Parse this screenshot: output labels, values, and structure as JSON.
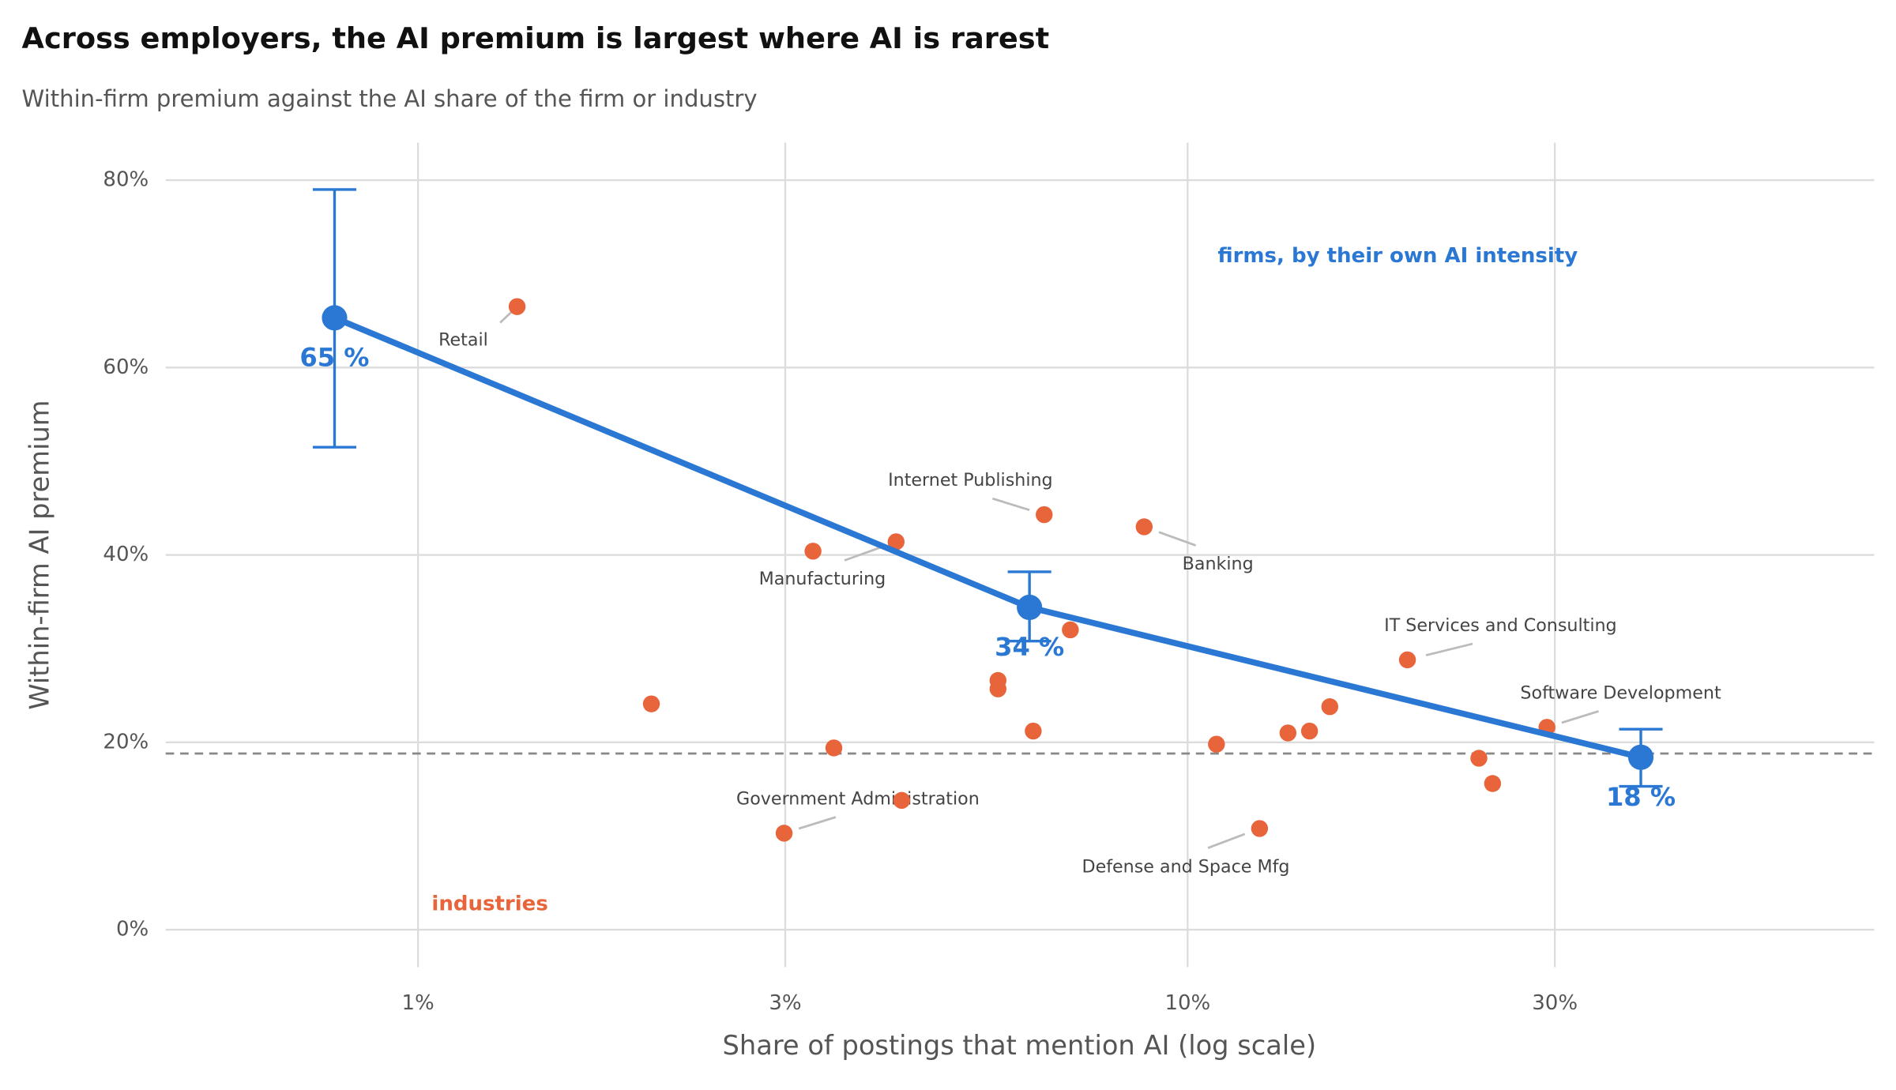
{
  "chart_data": {
    "type": "scatter",
    "title": "Across employers, the AI premium is largest where AI is rarest",
    "subtitle": "Within-firm premium against the AI share of the firm or industry",
    "xlabel": "Share of postings that mention AI (log scale)",
    "ylabel": "Within-firm AI premium",
    "xscale": "log",
    "grid": true,
    "xlim": [
      0.47,
      78
    ],
    "ylim": [
      -4,
      84
    ],
    "xticks": [
      {
        "value": 1,
        "label": "1%"
      },
      {
        "value": 3,
        "label": "3%"
      },
      {
        "value": 10,
        "label": "10%"
      },
      {
        "value": 30,
        "label": "30%"
      }
    ],
    "yticks": [
      {
        "value": 0,
        "label": "0%"
      },
      {
        "value": 20,
        "label": "20%"
      },
      {
        "value": 40,
        "label": "40%"
      },
      {
        "value": 60,
        "label": "60%"
      },
      {
        "value": 80,
        "label": "80%"
      }
    ],
    "hline": 18.8,
    "series": [
      {
        "name": "industries",
        "color": "#e8643a",
        "x": [
          1.345,
          2.01,
          4.18,
          3.26,
          6.51,
          8.78,
          7.04,
          5.67,
          5.67,
          6.3,
          3.47,
          2.99,
          4.25,
          10.9,
          13.5,
          14.4,
          15.3,
          12.4,
          19.3,
          29.3,
          23.9,
          24.9
        ],
        "values": [
          66.5,
          24.1,
          41.4,
          40.4,
          44.3,
          43.0,
          32.0,
          26.6,
          25.7,
          21.2,
          19.4,
          10.3,
          13.8,
          19.8,
          21.0,
          21.2,
          23.8,
          10.8,
          28.8,
          21.6,
          18.3,
          15.6
        ],
        "labels": [
          "Retail",
          null,
          "Manufacturing",
          null,
          "Internet Publishing",
          "Banking",
          null,
          null,
          null,
          null,
          null,
          "Government Administration",
          null,
          null,
          null,
          null,
          null,
          "Defense and Space Mfg",
          "IT Services and Consulting",
          "Software Development",
          null,
          null
        ]
      },
      {
        "name": "firms, by their own AI intensity",
        "color": "#2b78d4",
        "x": [
          0.779,
          6.23,
          38.8
        ],
        "values": [
          65.3,
          34.4,
          18.4
        ],
        "lower": [
          51.5,
          30.8,
          15.3
        ],
        "upper": [
          79.0,
          38.2,
          21.4
        ],
        "value_labels": [
          "65 %",
          "34 %",
          "18 %"
        ]
      }
    ]
  }
}
